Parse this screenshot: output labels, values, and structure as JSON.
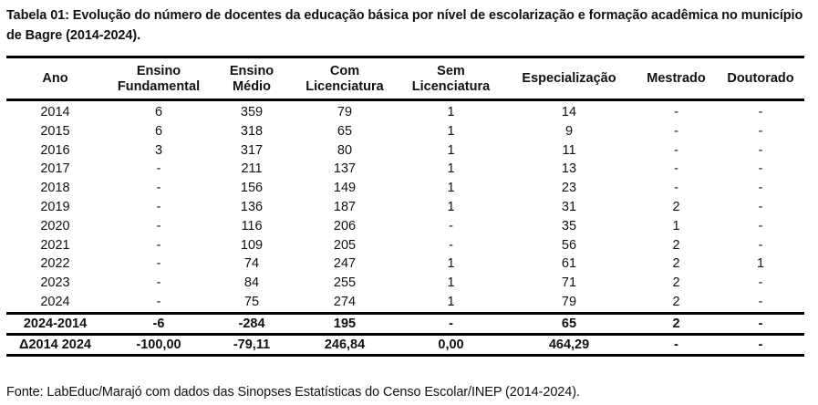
{
  "caption": "Tabela 01: Evolução do número de docentes da educação básica por nível de escolarização e formação acadêmica no município de Bagre (2014-2024).",
  "table": {
    "headers": [
      {
        "line1": "Ano",
        "line2": ""
      },
      {
        "line1": "Ensino",
        "line2": "Fundamental"
      },
      {
        "line1": "Ensino",
        "line2": "Médio"
      },
      {
        "line1": "Com",
        "line2": "Licenciatura"
      },
      {
        "line1": "Sem",
        "line2": "Licenciatura"
      },
      {
        "line1": "Especialização",
        "line2": ""
      },
      {
        "line1": "Mestrado",
        "line2": ""
      },
      {
        "line1": "Doutorado",
        "line2": ""
      }
    ],
    "rows": [
      [
        "2014",
        "6",
        "359",
        "79",
        "1",
        "14",
        "-",
        "-"
      ],
      [
        "2015",
        "6",
        "318",
        "65",
        "1",
        "9",
        "-",
        "-"
      ],
      [
        "2016",
        "3",
        "317",
        "80",
        "1",
        "11",
        "-",
        "-"
      ],
      [
        "2017",
        "-",
        "211",
        "137",
        "1",
        "13",
        "-",
        "-"
      ],
      [
        "2018",
        "-",
        "156",
        "149",
        "1",
        "23",
        "-",
        "-"
      ],
      [
        "2019",
        "-",
        "136",
        "187",
        "1",
        "31",
        "2",
        "-"
      ],
      [
        "2020",
        "-",
        "116",
        "206",
        "-",
        "35",
        "1",
        "-"
      ],
      [
        "2021",
        "-",
        "109",
        "205",
        "-",
        "56",
        "2",
        "-"
      ],
      [
        "2022",
        "-",
        "74",
        "247",
        "1",
        "61",
        "2",
        "1"
      ],
      [
        "2023",
        "-",
        "84",
        "255",
        "1",
        "71",
        "2",
        "-"
      ],
      [
        "2024",
        "-",
        "75",
        "274",
        "1",
        "79",
        "2",
        "-"
      ]
    ],
    "summary": [
      [
        "2024-2014",
        "-6",
        "-284",
        "195",
        "-",
        "65",
        "2",
        "-"
      ],
      [
        "Δ2014 2024",
        "-100,00",
        "-79,11",
        "246,84",
        "0,00",
        "464,29",
        "-",
        "-"
      ]
    ]
  },
  "source": "Fonte: LabEduc/Marajó com dados das Sinopses Estatísticas do Censo Escolar/INEP (2014-2024).",
  "chart_data": {
    "type": "table",
    "title": "Tabela 01: Evolução do número de docentes da educação básica por nível de escolarização e formação acadêmica no município de Bagre (2014-2024).",
    "columns": [
      "Ano",
      "Ensino Fundamental",
      "Ensino Médio",
      "Com Licenciatura",
      "Sem Licenciatura",
      "Especialização",
      "Mestrado",
      "Doutorado"
    ],
    "categories": [
      "2014",
      "2015",
      "2016",
      "2017",
      "2018",
      "2019",
      "2020",
      "2021",
      "2022",
      "2023",
      "2024"
    ],
    "series": [
      {
        "name": "Ensino Fundamental",
        "values": [
          6,
          6,
          3,
          null,
          null,
          null,
          null,
          null,
          null,
          null,
          null
        ]
      },
      {
        "name": "Ensino Médio",
        "values": [
          359,
          318,
          317,
          211,
          156,
          136,
          116,
          109,
          74,
          84,
          75
        ]
      },
      {
        "name": "Com Licenciatura",
        "values": [
          79,
          65,
          80,
          137,
          149,
          187,
          206,
          205,
          247,
          255,
          274
        ]
      },
      {
        "name": "Sem Licenciatura",
        "values": [
          1,
          1,
          1,
          1,
          1,
          1,
          null,
          null,
          1,
          1,
          1
        ]
      },
      {
        "name": "Especialização",
        "values": [
          14,
          9,
          11,
          13,
          23,
          31,
          35,
          56,
          61,
          71,
          79
        ]
      },
      {
        "name": "Mestrado",
        "values": [
          null,
          null,
          null,
          null,
          null,
          2,
          1,
          2,
          2,
          2,
          2
        ]
      },
      {
        "name": "Doutorado",
        "values": [
          null,
          null,
          null,
          null,
          null,
          null,
          null,
          null,
          1,
          null,
          null
        ]
      }
    ],
    "summary_rows": {
      "2024-2014": [
        "-6",
        "-284",
        "195",
        "-",
        "65",
        "2",
        "-"
      ],
      "Δ2014 2024": [
        "-100,00",
        "-79,11",
        "246,84",
        "0,00",
        "464,29",
        "-",
        "-"
      ]
    },
    "note": "Fonte: LabEduc/Marajó com dados das Sinopses Estatísticas do Censo Escolar/INEP (2014-2024)."
  }
}
